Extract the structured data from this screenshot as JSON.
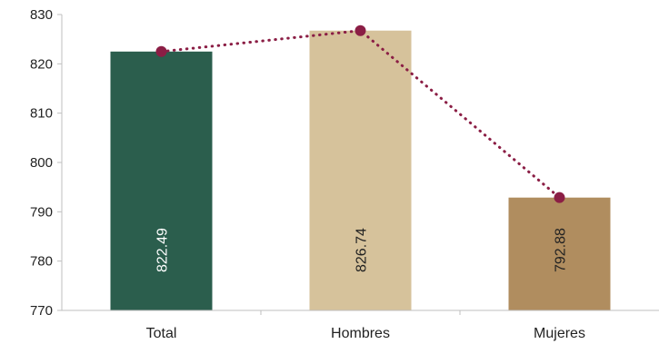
{
  "chart_data": {
    "type": "bar",
    "categories": [
      "Total",
      "Hombres",
      "Mujeres"
    ],
    "values": [
      822.49,
      826.74,
      792.88
    ],
    "value_labels": [
      "822.49",
      "826.74",
      "792.88"
    ],
    "line_overlay": {
      "style": "dotted",
      "marker": "circle",
      "color": "#8b1e45"
    },
    "bar_colors": [
      "#2b5e4d",
      "#d6c29b",
      "#b08d5f"
    ],
    "label_colors": [
      "#ffffff",
      "#222222",
      "#222222"
    ],
    "title": "",
    "xlabel": "",
    "ylabel": "",
    "ylim": [
      770,
      830
    ],
    "yticks": [
      770,
      780,
      790,
      800,
      810,
      820,
      830
    ],
    "grid": false,
    "legend": "none"
  }
}
